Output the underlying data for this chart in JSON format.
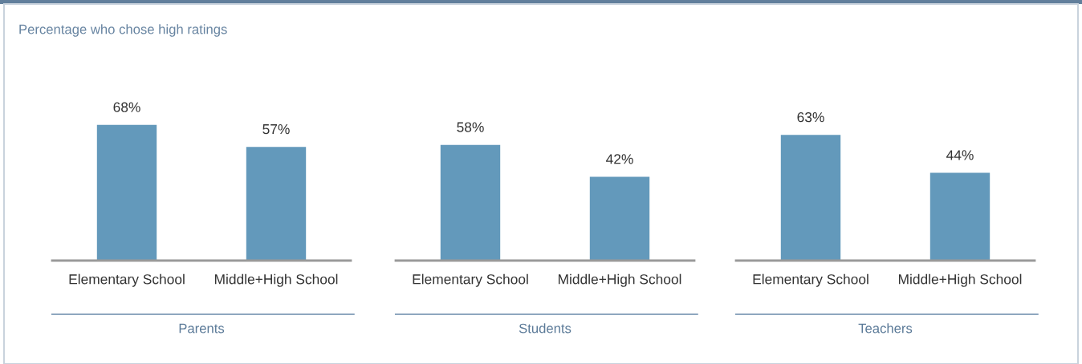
{
  "chart_data": [
    {
      "type": "bar",
      "title": "Percentage who chose high ratings",
      "xlabel": "Parents",
      "categories": [
        "Elementary School",
        "Middle+High School"
      ],
      "values": [
        68,
        57
      ],
      "value_labels": [
        "68%",
        "57%"
      ],
      "color": "#6399bb"
    },
    {
      "type": "bar",
      "xlabel": "Students",
      "categories": [
        "Elementary School",
        "Middle+High School"
      ],
      "values": [
        58,
        42
      ],
      "value_labels": [
        "58%",
        "42%"
      ],
      "color": "#6399bb"
    },
    {
      "type": "bar",
      "xlabel": "Teachers",
      "categories": [
        "Elementary School",
        "Middle+High School"
      ],
      "values": [
        63,
        44
      ],
      "value_labels": [
        "63%",
        "44%"
      ],
      "color": "#6399bb"
    }
  ]
}
